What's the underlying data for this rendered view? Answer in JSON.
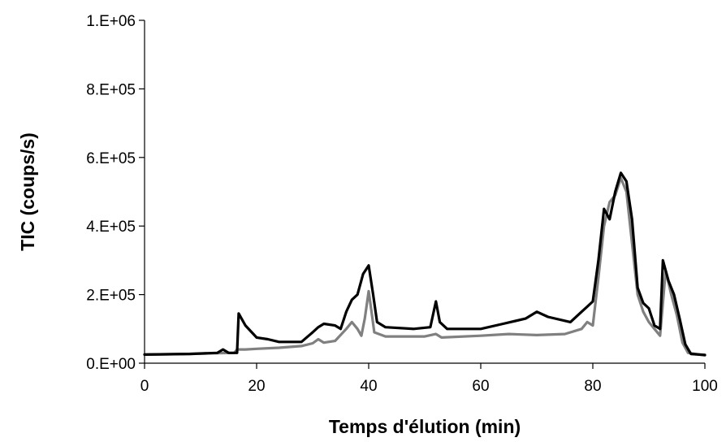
{
  "chart_data": {
    "type": "line",
    "title": "",
    "xlabel": "Temps d'élution (min)",
    "ylabel": "TIC (coups/s)",
    "xlim": [
      0,
      100
    ],
    "ylim": [
      0,
      1000000
    ],
    "x_ticks": [
      "0",
      "20",
      "40",
      "60",
      "80",
      "100"
    ],
    "y_ticks": [
      "0.E+00",
      "2.E+05",
      "4.E+05",
      "6.E+05",
      "8.E+05",
      "1.E+06"
    ],
    "grid": false,
    "legend": "none",
    "series": [
      {
        "color": "#808080",
        "points": [
          [
            0,
            25000
          ],
          [
            8,
            27000
          ],
          [
            12,
            29000
          ],
          [
            16,
            30000
          ],
          [
            16.5,
            40000
          ],
          [
            18,
            40000
          ],
          [
            20,
            42000
          ],
          [
            24,
            45000
          ],
          [
            28,
            50000
          ],
          [
            30,
            58000
          ],
          [
            31,
            70000
          ],
          [
            32,
            60000
          ],
          [
            34,
            65000
          ],
          [
            36,
            100000
          ],
          [
            37,
            120000
          ],
          [
            38,
            100000
          ],
          [
            38.7,
            80000
          ],
          [
            39.3,
            130000
          ],
          [
            40,
            210000
          ],
          [
            40.5,
            150000
          ],
          [
            41,
            90000
          ],
          [
            43,
            78000
          ],
          [
            50,
            78000
          ],
          [
            52,
            85000
          ],
          [
            53,
            75000
          ],
          [
            60,
            80000
          ],
          [
            65,
            85000
          ],
          [
            70,
            82000
          ],
          [
            75,
            85000
          ],
          [
            78,
            100000
          ],
          [
            79,
            120000
          ],
          [
            80,
            110000
          ],
          [
            81,
            250000
          ],
          [
            82,
            400000
          ],
          [
            83,
            470000
          ],
          [
            84,
            490000
          ],
          [
            85,
            540000
          ],
          [
            86,
            500000
          ],
          [
            87,
            350000
          ],
          [
            88,
            200000
          ],
          [
            89,
            150000
          ],
          [
            90,
            120000
          ],
          [
            91,
            100000
          ],
          [
            92,
            80000
          ],
          [
            93,
            270000
          ],
          [
            94,
            200000
          ],
          [
            95,
            140000
          ],
          [
            96,
            60000
          ],
          [
            97,
            30000
          ],
          [
            100,
            23000
          ]
        ]
      },
      {
        "color": "#000000",
        "points": [
          [
            0,
            25000
          ],
          [
            8,
            27000
          ],
          [
            13,
            30000
          ],
          [
            14,
            40000
          ],
          [
            15,
            30000
          ],
          [
            16.5,
            30000
          ],
          [
            16.8,
            145000
          ],
          [
            18,
            110000
          ],
          [
            20,
            75000
          ],
          [
            22,
            70000
          ],
          [
            24,
            62000
          ],
          [
            28,
            62000
          ],
          [
            30,
            90000
          ],
          [
            31,
            105000
          ],
          [
            32,
            115000
          ],
          [
            34,
            110000
          ],
          [
            35,
            100000
          ],
          [
            36,
            150000
          ],
          [
            37,
            185000
          ],
          [
            38,
            200000
          ],
          [
            39,
            260000
          ],
          [
            40,
            285000
          ],
          [
            40.8,
            200000
          ],
          [
            41.5,
            120000
          ],
          [
            43,
            105000
          ],
          [
            48,
            100000
          ],
          [
            51,
            105000
          ],
          [
            52,
            180000
          ],
          [
            52.7,
            120000
          ],
          [
            54,
            100000
          ],
          [
            60,
            100000
          ],
          [
            64,
            115000
          ],
          [
            68,
            130000
          ],
          [
            70,
            150000
          ],
          [
            72,
            135000
          ],
          [
            76,
            120000
          ],
          [
            78,
            150000
          ],
          [
            79,
            165000
          ],
          [
            80,
            180000
          ],
          [
            81,
            300000
          ],
          [
            82,
            450000
          ],
          [
            83,
            420000
          ],
          [
            84,
            500000
          ],
          [
            85,
            555000
          ],
          [
            86,
            530000
          ],
          [
            87,
            420000
          ],
          [
            88,
            220000
          ],
          [
            89,
            175000
          ],
          [
            90,
            160000
          ],
          [
            91,
            110000
          ],
          [
            92,
            100000
          ],
          [
            92.5,
            300000
          ],
          [
            93.5,
            240000
          ],
          [
            94.5,
            200000
          ],
          [
            95.5,
            130000
          ],
          [
            96.5,
            55000
          ],
          [
            97.5,
            27000
          ],
          [
            100,
            24000
          ]
        ]
      }
    ]
  }
}
